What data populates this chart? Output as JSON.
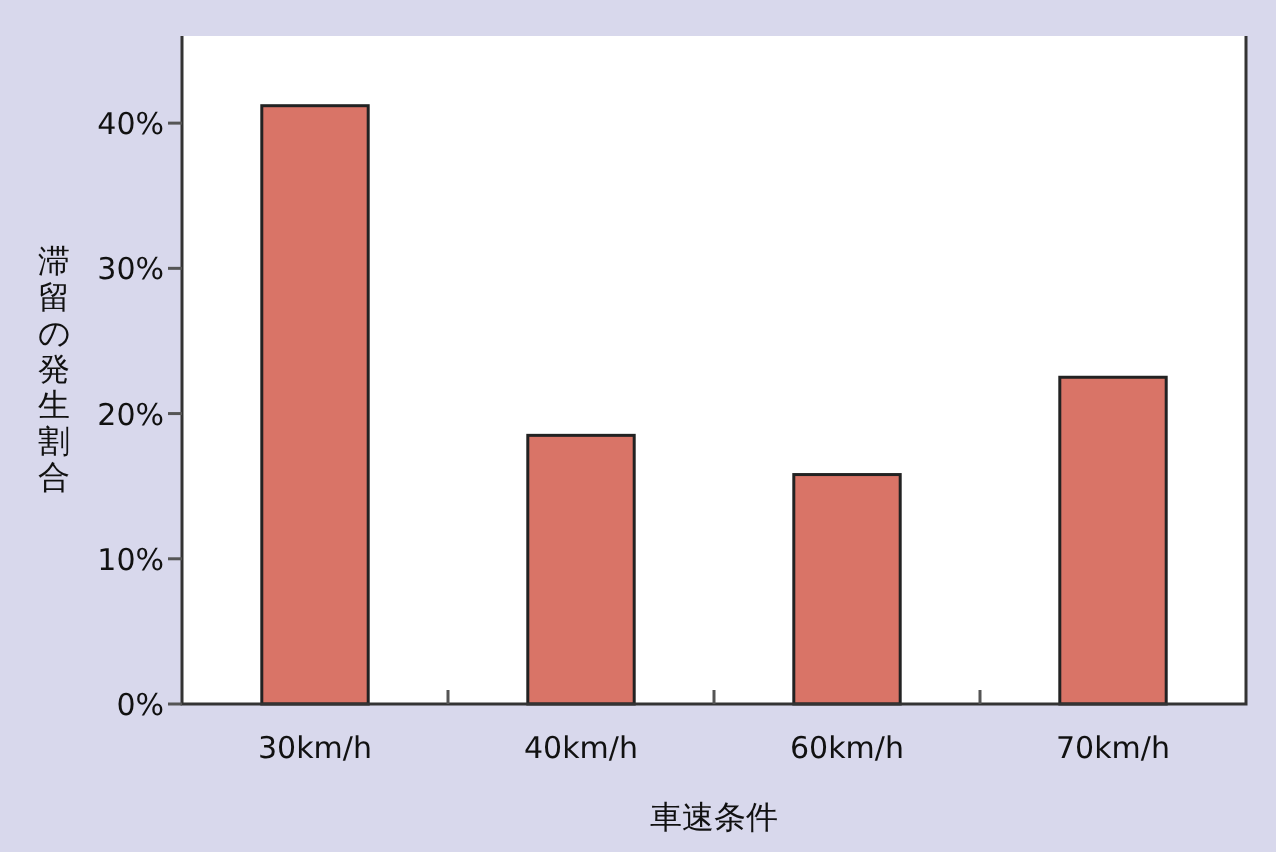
{
  "chart_data": {
    "type": "bar",
    "xlabel": "車速条件",
    "ylabel": "滞留の発生割合",
    "categories": [
      "30km/h",
      "40km/h",
      "60km/h",
      "70km/h"
    ],
    "values": [
      41.2,
      18.5,
      15.8,
      22.5
    ],
    "color": "#d97467",
    "ylim": [
      0,
      46
    ],
    "yticks": [
      {
        "value": 0,
        "label": "0%"
      },
      {
        "value": 10,
        "label": "10%"
      },
      {
        "value": 20,
        "label": "20%"
      },
      {
        "value": 30,
        "label": "30%"
      },
      {
        "value": 40,
        "label": "40%"
      }
    ],
    "relative": false
  }
}
